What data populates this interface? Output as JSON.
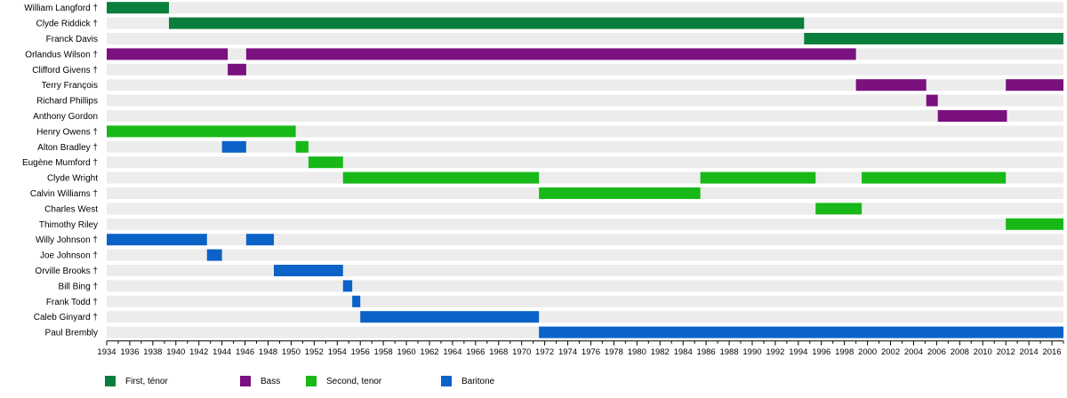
{
  "chart_data": {
    "type": "timeline",
    "xlim": [
      1934,
      2017
    ],
    "x_ticks": [
      1934,
      1936,
      1938,
      1940,
      1942,
      1944,
      1946,
      1948,
      1950,
      1952,
      1954,
      1956,
      1958,
      1960,
      1962,
      1964,
      1966,
      1968,
      1970,
      1972,
      1974,
      1976,
      1978,
      1980,
      1982,
      1984,
      1986,
      1988,
      1990,
      1992,
      1994,
      1996,
      1998,
      2000,
      2002,
      2004,
      2006,
      2008,
      2010,
      2012,
      2014,
      2016
    ],
    "grid": false,
    "legend_position": "bottom",
    "roles": [
      {
        "key": "first_tenor",
        "label": "First, ténor",
        "color": "#0a7e3c"
      },
      {
        "key": "bass",
        "label": "Bass",
        "color": "#7b107f"
      },
      {
        "key": "second_tenor",
        "label": "Second, tenor",
        "color": "#17b817"
      },
      {
        "key": "baritone",
        "label": "Baritone",
        "color": "#0b63c8"
      }
    ],
    "members": [
      {
        "name": "William Langford †",
        "spans": [
          {
            "role": "first_tenor",
            "start": 1934,
            "end": 1939.4
          }
        ]
      },
      {
        "name": "Clyde Riddick †",
        "spans": [
          {
            "role": "first_tenor",
            "start": 1939.4,
            "end": 1994.5
          }
        ]
      },
      {
        "name": "Franck Davis",
        "spans": [
          {
            "role": "first_tenor",
            "start": 1994.5,
            "end": 2017
          }
        ]
      },
      {
        "name": "Orlandus Wilson †",
        "spans": [
          {
            "role": "bass",
            "start": 1934,
            "end": 1944.5
          },
          {
            "role": "bass",
            "start": 1946.1,
            "end": 1999
          }
        ]
      },
      {
        "name": "Clifford Givens †",
        "spans": [
          {
            "role": "bass",
            "start": 1944.5,
            "end": 1946.1
          }
        ]
      },
      {
        "name": "Terry François",
        "spans": [
          {
            "role": "bass",
            "start": 1999,
            "end": 2005.1
          },
          {
            "role": "bass",
            "start": 2012,
            "end": 2017
          }
        ]
      },
      {
        "name": "Richard Phillips",
        "spans": [
          {
            "role": "bass",
            "start": 2005.1,
            "end": 2006.1
          }
        ]
      },
      {
        "name": "Anthony Gordon",
        "spans": [
          {
            "role": "bass",
            "start": 2006.1,
            "end": 2012.1
          }
        ]
      },
      {
        "name": "Henry Owens †",
        "spans": [
          {
            "role": "second_tenor",
            "start": 1934,
            "end": 1950.4
          }
        ]
      },
      {
        "name": "Alton Bradley †",
        "spans": [
          {
            "role": "baritone",
            "start": 1944,
            "end": 1946.1
          },
          {
            "role": "second_tenor",
            "start": 1950.4,
            "end": 1951.5
          }
        ]
      },
      {
        "name": "Eugène Mumford †",
        "spans": [
          {
            "role": "second_tenor",
            "start": 1951.5,
            "end": 1954.5
          }
        ]
      },
      {
        "name": "Clyde Wright",
        "spans": [
          {
            "role": "second_tenor",
            "start": 1954.5,
            "end": 1971.5
          },
          {
            "role": "second_tenor",
            "start": 1985.5,
            "end": 1995.5
          },
          {
            "role": "second_tenor",
            "start": 1999.5,
            "end": 2012
          }
        ]
      },
      {
        "name": "Calvin Williams †",
        "spans": [
          {
            "role": "second_tenor",
            "start": 1971.5,
            "end": 1985.5
          }
        ]
      },
      {
        "name": "Charles West",
        "spans": [
          {
            "role": "second_tenor",
            "start": 1995.5,
            "end": 1999.5
          }
        ]
      },
      {
        "name": "Thimothy Riley",
        "spans": [
          {
            "role": "second_tenor",
            "start": 2012,
            "end": 2017
          }
        ]
      },
      {
        "name": "Willy Johnson †",
        "spans": [
          {
            "role": "baritone",
            "start": 1934,
            "end": 1942.7
          },
          {
            "role": "baritone",
            "start": 1946.1,
            "end": 1948.5
          }
        ]
      },
      {
        "name": "Joe Johnson †",
        "spans": [
          {
            "role": "baritone",
            "start": 1942.7,
            "end": 1944
          }
        ]
      },
      {
        "name": "Orville Brooks †",
        "spans": [
          {
            "role": "baritone",
            "start": 1948.5,
            "end": 1954.5
          }
        ]
      },
      {
        "name": "Bill Bing †",
        "spans": [
          {
            "role": "baritone",
            "start": 1954.5,
            "end": 1955.3
          }
        ]
      },
      {
        "name": "Frank Todd †",
        "spans": [
          {
            "role": "baritone",
            "start": 1955.3,
            "end": 1956
          }
        ]
      },
      {
        "name": "Caleb Ginyard †",
        "spans": [
          {
            "role": "baritone",
            "start": 1956,
            "end": 1971.5
          }
        ]
      },
      {
        "name": "Paul Brembly",
        "spans": [
          {
            "role": "baritone",
            "start": 1971.5,
            "end": 2017
          }
        ]
      }
    ]
  }
}
